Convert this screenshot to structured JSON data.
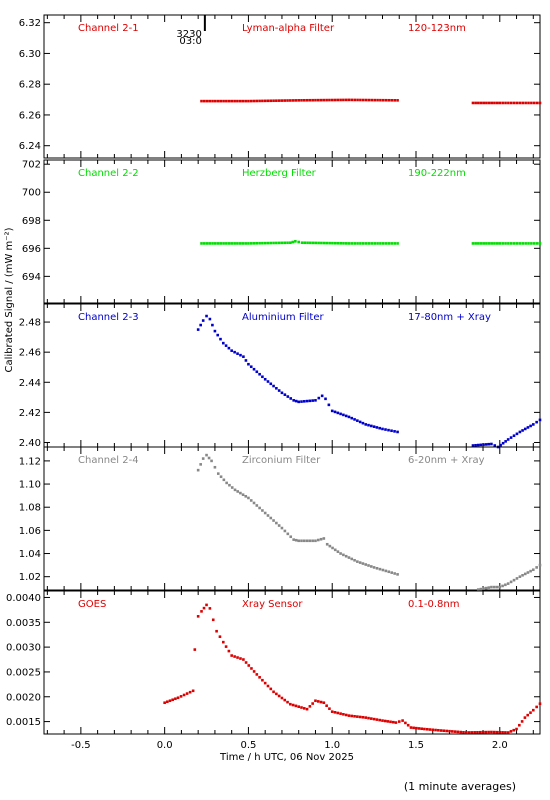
{
  "chart_data": {
    "type": "scatter",
    "xlabel": "Time / h UTC, 06 Nov 2025",
    "ylabel": "Calibrated Signal / (mW m⁻²)",
    "xlim": [
      -0.72,
      2.24
    ],
    "x_ticks": [
      "-0.5",
      "0.0",
      "0.5",
      "1.0",
      "1.5",
      "2.0"
    ],
    "x_tick_values": [
      -0.5,
      0.0,
      0.5,
      1.0,
      1.5,
      2.0
    ],
    "footer": "(1 minute averages)",
    "marker_label": {
      "x": 0.24,
      "lines": [
        "3230",
        "03:0"
      ]
    },
    "panels": [
      {
        "channel": "Channel 2-1",
        "filter": "Lyman-alpha Filter",
        "band": "120-123nm",
        "color": "#dd0000",
        "ylim": [
          6.232,
          6.325
        ],
        "y_ticks": [
          6.24,
          6.26,
          6.28,
          6.3,
          6.32
        ],
        "y_tick_labels": [
          "6.24",
          "6.26",
          "6.28",
          "6.30",
          "6.32"
        ],
        "series": [
          {
            "x": [
              0.22,
              0.5,
              0.8,
              1.1,
              1.39
            ],
            "y": [
              6.269,
              6.269,
              6.2695,
              6.2698,
              6.2695
            ]
          },
          {
            "x": [
              1.84,
              2.0,
              2.24
            ],
            "y": [
              6.2678,
              6.2678,
              6.2678
            ]
          }
        ]
      },
      {
        "channel": "Channel 2-2",
        "filter": "Herzberg Filter",
        "band": "190-222nm",
        "color": "#00dd00",
        "ylim": [
          692.1,
          702.3
        ],
        "y_ticks": [
          694,
          696,
          698,
          700,
          702
        ],
        "y_tick_labels": [
          "694",
          "696",
          "698",
          "700",
          "702"
        ],
        "series": [
          {
            "x": [
              0.22,
              0.5,
              0.75,
              0.78,
              0.82,
              1.1,
              1.39
            ],
            "y": [
              696.35,
              696.35,
              696.4,
              696.5,
              696.4,
              696.35,
              696.35
            ]
          },
          {
            "x": [
              1.84,
              2.0,
              2.24
            ],
            "y": [
              696.35,
              696.35,
              696.35
            ]
          }
        ]
      },
      {
        "channel": "Channel 2-3",
        "filter": "Aluminium Filter",
        "band": "17-80nm + Xray",
        "color": "#0000cc",
        "ylim": [
          2.397,
          2.492
        ],
        "y_ticks": [
          2.4,
          2.42,
          2.44,
          2.46,
          2.48
        ],
        "y_tick_labels": [
          "2.40",
          "2.42",
          "2.44",
          "2.46",
          "2.48"
        ],
        "series": [
          {
            "x": [
              0.2,
              0.23,
              0.25,
              0.27,
              0.3,
              0.35,
              0.4,
              0.47,
              0.5,
              0.6,
              0.7,
              0.77,
              0.8,
              0.9,
              0.94,
              0.96,
              1.0,
              1.1,
              1.2,
              1.3,
              1.39
            ],
            "y": [
              2.475,
              2.481,
              2.484,
              2.482,
              2.474,
              2.466,
              2.461,
              2.457,
              2.452,
              2.442,
              2.433,
              2.428,
              2.427,
              2.428,
              2.431,
              2.429,
              2.421,
              2.417,
              2.412,
              2.409,
              2.407
            ]
          },
          {
            "x": [
              1.84,
              1.95,
              1.99,
              2.05,
              2.12,
              2.2,
              2.24
            ],
            "y": [
              2.398,
              2.399,
              2.397,
              2.402,
              2.407,
              2.412,
              2.415
            ]
          }
        ]
      },
      {
        "channel": "Channel 2-4",
        "filter": "Zirconium Filter",
        "band": "6-20nm + Xray",
        "color": "#888888",
        "ylim": [
          1.0085,
          1.132
        ],
        "y_ticks": [
          1.02,
          1.04,
          1.06,
          1.08,
          1.1,
          1.12
        ],
        "y_tick_labels": [
          "1.02",
          "1.04",
          "1.06",
          "1.08",
          "1.10",
          "1.12"
        ],
        "series": [
          {
            "x": [
              0.2,
              0.23,
              0.25,
              0.28,
              0.32,
              0.37,
              0.42,
              0.5,
              0.6,
              0.7,
              0.77,
              0.8,
              0.9,
              0.95,
              0.97,
              1.05,
              1.15,
              1.25,
              1.32,
              1.39
            ],
            "y": [
              1.112,
              1.122,
              1.125,
              1.12,
              1.109,
              1.101,
              1.095,
              1.088,
              1.075,
              1.062,
              1.052,
              1.051,
              1.051,
              1.053,
              1.048,
              1.04,
              1.033,
              1.028,
              1.025,
              1.022
            ]
          },
          {
            "x": [
              1.84,
              1.95,
              2.0,
              2.05,
              2.12,
              2.2,
              2.24
            ],
            "y": [
              1.008,
              1.011,
              1.011,
              1.014,
              1.02,
              1.026,
              1.03
            ]
          }
        ]
      },
      {
        "channel": "GOES",
        "filter": "Xray Sensor",
        "band": "0.1-0.8nm",
        "color": "#dd0000",
        "ylim": [
          0.00125,
          0.00413
        ],
        "y_ticks": [
          0.0015,
          0.002,
          0.0025,
          0.003,
          0.0035,
          0.004
        ],
        "y_tick_labels": [
          "0.0015",
          "0.0020",
          "0.0025",
          "0.0030",
          "0.0035",
          "0.0040"
        ],
        "series": [
          {
            "x": [
              0.0,
              0.08,
              0.17,
              0.18,
              0.2,
              0.22,
              0.25,
              0.27,
              0.29,
              0.31,
              0.35,
              0.4,
              0.47,
              0.55,
              0.65,
              0.75,
              0.85,
              0.9,
              0.95,
              1.0,
              1.1,
              1.2,
              1.3,
              1.38,
              1.42,
              1.47,
              1.55,
              1.65,
              1.8,
              1.95,
              2.05,
              2.1,
              2.15,
              2.2,
              2.24
            ],
            "y": [
              0.00188,
              0.00198,
              0.00212,
              0.00295,
              0.00362,
              0.00372,
              0.00385,
              0.00378,
              0.00355,
              0.00332,
              0.0031,
              0.00283,
              0.00275,
              0.00245,
              0.0021,
              0.00185,
              0.00175,
              0.00192,
              0.00188,
              0.0017,
              0.00162,
              0.00158,
              0.00152,
              0.00148,
              0.00152,
              0.00138,
              0.00135,
              0.00132,
              0.00128,
              0.00129,
              0.00128,
              0.00135,
              0.00158,
              0.00173,
              0.00186
            ]
          }
        ]
      }
    ]
  }
}
